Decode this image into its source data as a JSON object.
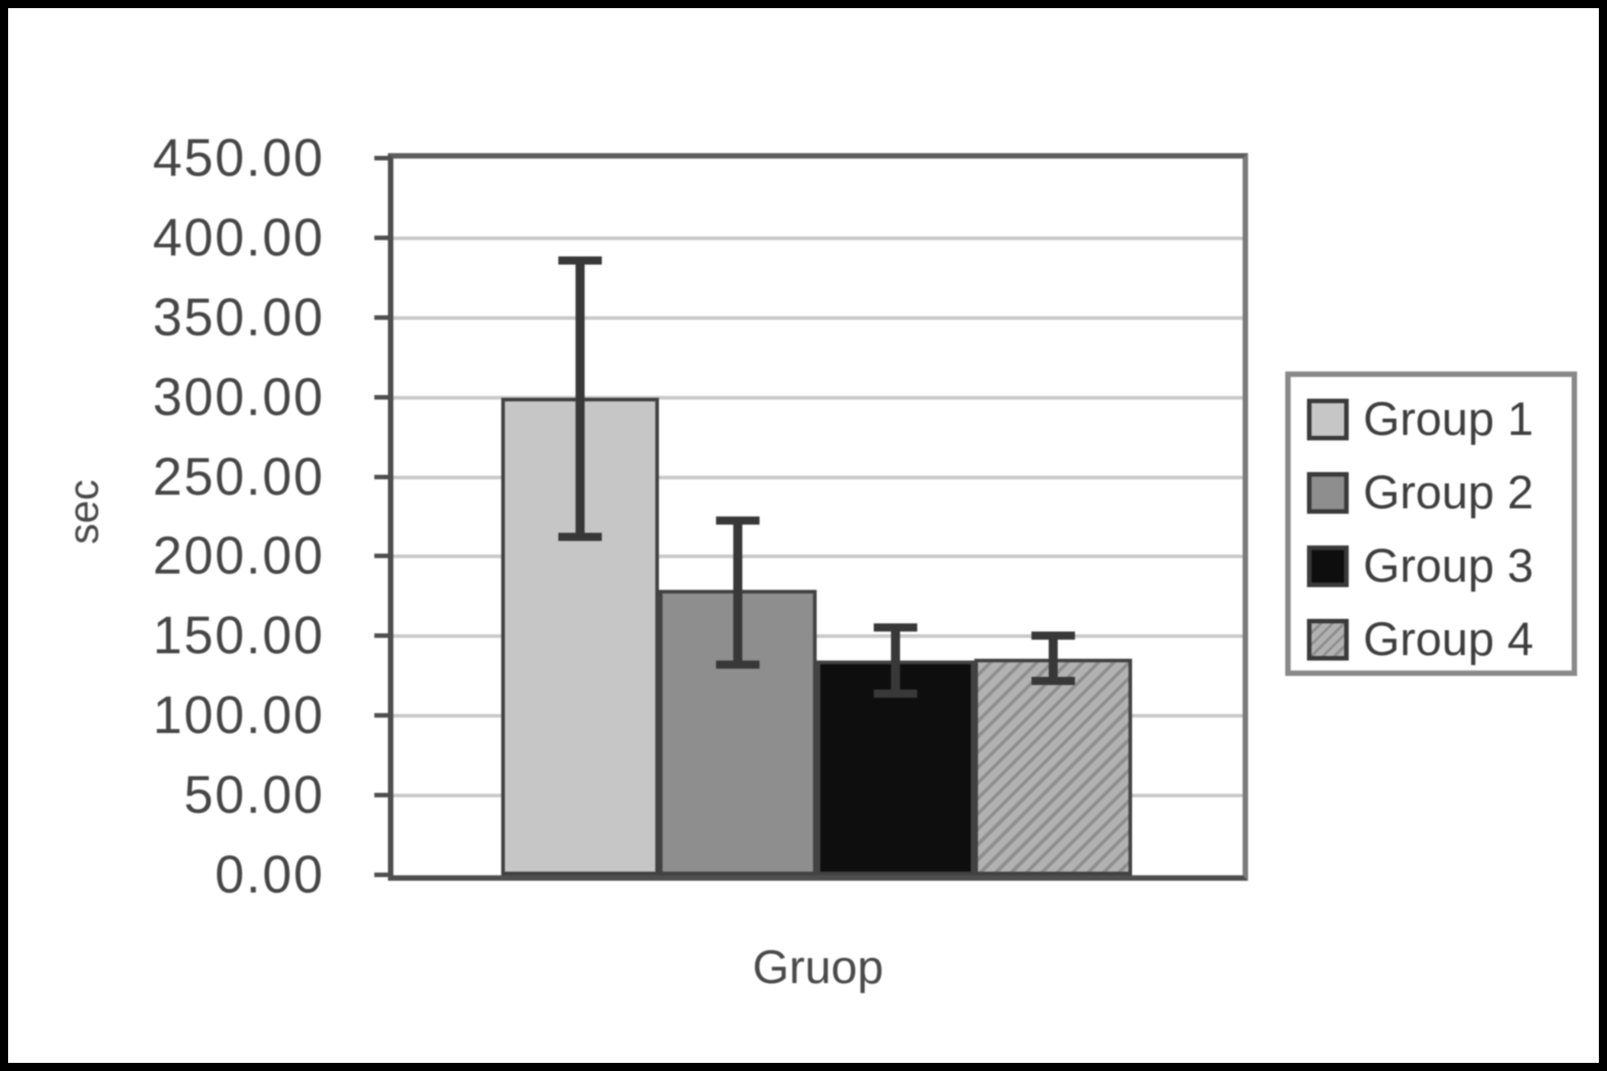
{
  "chart_data": {
    "type": "bar",
    "title": "",
    "xlabel": "Gruop",
    "ylabel": "sec",
    "ylim": [
      0,
      450
    ],
    "ytick_step": 50,
    "ytick_labels": [
      "0.00",
      "50.00",
      "100.00",
      "150.00",
      "200.00",
      "250.00",
      "300.00",
      "350.00",
      "400.00",
      "450.00"
    ],
    "grid": true,
    "legend_position": "right-outside",
    "error_bars": true,
    "error_color": "#383838",
    "categories": [
      "Group 1",
      "Group 2",
      "Group 3",
      "Group 4"
    ],
    "series": [
      {
        "name": "Group 1",
        "value": 300,
        "err_low": 212,
        "err_high": 386,
        "fill": "#c6c6c6",
        "pattern": "solid"
      },
      {
        "name": "Group 2",
        "value": 179,
        "err_low": 132,
        "err_high": 223,
        "fill": "#8e8e8e",
        "pattern": "solid"
      },
      {
        "name": "Group 3",
        "value": 135,
        "err_low": 114,
        "err_high": 156,
        "fill": "#0e0e0e",
        "pattern": "solid"
      },
      {
        "name": "Group 4",
        "value": 136,
        "err_low": 122,
        "err_high": 151,
        "fill": "#b2b2b2",
        "pattern": "diagonal-hatch",
        "hatch_color": "#8f8f8f"
      }
    ],
    "axis_color": "#4e4e4e",
    "gridline_color": "#c9c9c9"
  },
  "legend": {
    "items": [
      "Group 1",
      "Group 2",
      "Group 3",
      "Group 4"
    ]
  }
}
